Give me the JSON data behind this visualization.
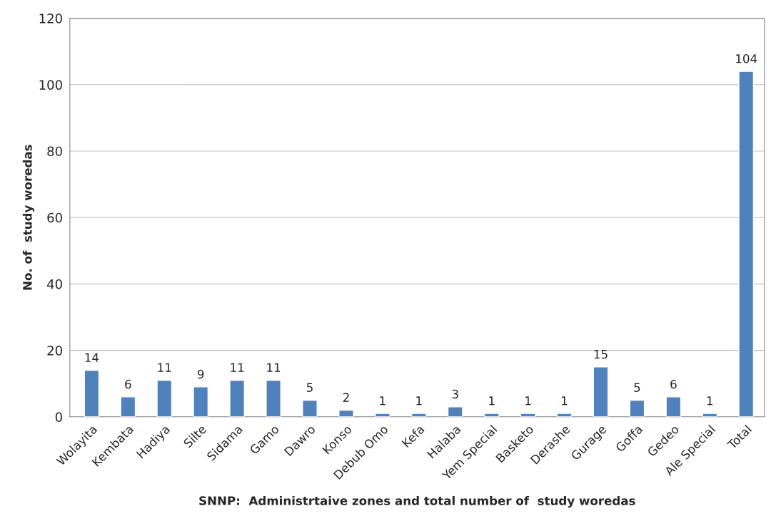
{
  "chart_data": {
    "type": "bar",
    "xlabel": "SNNP:  Administrtaive zones and total number of  study woredas",
    "ylabel": "No. of  study woredas",
    "categories": [
      "Wolayita",
      "Kembata",
      "Hadiya",
      "Silte",
      "Sidama",
      "Gamo",
      "Dawro",
      "Konso",
      "Debub Omo",
      "Kefa",
      "Halaba",
      "Yem Special",
      "Basketo",
      "Derashe",
      "Gurage",
      "Goffa",
      "Gedeo",
      "Ale Special",
      "Total"
    ],
    "values": [
      14,
      6,
      11,
      9,
      11,
      11,
      5,
      2,
      1,
      1,
      3,
      1,
      1,
      1,
      15,
      5,
      6,
      1,
      104
    ],
    "color": "#4f81bd",
    "ylim": [
      0,
      120
    ],
    "yticks": [
      0,
      20,
      40,
      60,
      80,
      100,
      120
    ],
    "grid": "y",
    "data_labels": true
  }
}
